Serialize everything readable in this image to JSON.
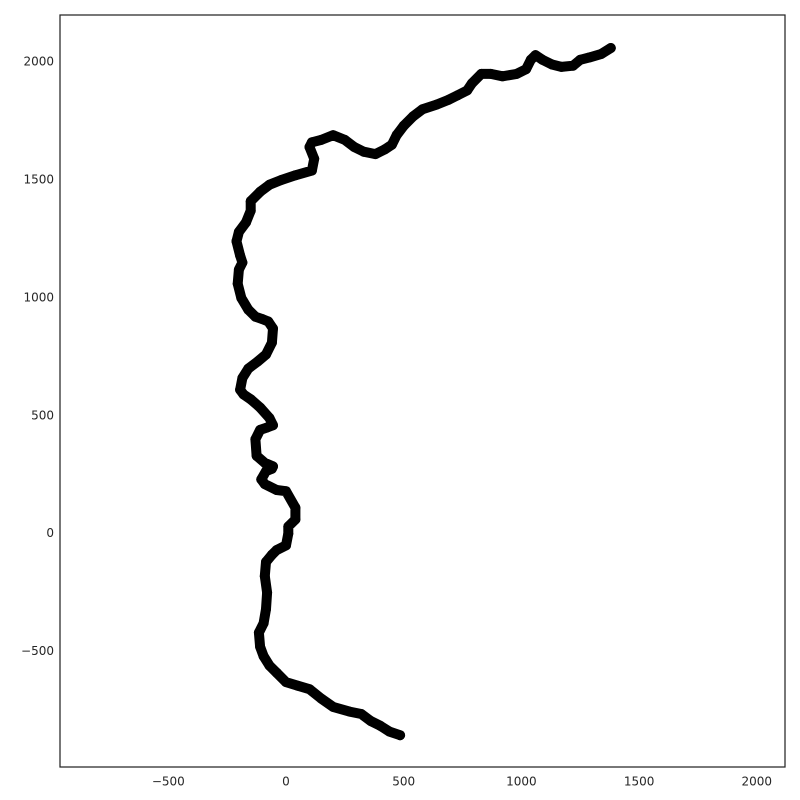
{
  "chart_data": {
    "type": "scatter",
    "title": "",
    "xlabel": "",
    "ylabel": "",
    "xlim": [
      -960,
      2120
    ],
    "ylim": [
      -990,
      2200
    ],
    "grid": false,
    "xticks": [
      -500,
      0,
      500,
      1000,
      1500,
      2000
    ],
    "xtick_labels": [
      "−500",
      "0",
      "500",
      "1000",
      "1500",
      "2000"
    ],
    "yticks": [
      -500,
      0,
      500,
      1000,
      1500,
      2000
    ],
    "ytick_labels": [
      "−500",
      "0",
      "500",
      "1000",
      "1500",
      "2000"
    ],
    "marker_color": "#000000",
    "series": [
      {
        "x": [
          485,
          440,
          400,
          360,
          320,
          270,
          200,
          150,
          100,
          50,
          0,
          -40,
          -70,
          -95,
          -110,
          -115,
          -95,
          -85,
          -80,
          -90,
          -85,
          -60,
          -40,
          0,
          10,
          10,
          40,
          40,
          0,
          -40,
          -90,
          -105,
          -85,
          -60,
          -55,
          -90,
          -125,
          -130,
          -110,
          -80,
          -55,
          -70,
          -110,
          -150,
          -180,
          -195,
          -185,
          -160,
          -120,
          -85,
          -60,
          -55,
          -75,
          -100,
          -130,
          -160,
          -190,
          -205,
          -200,
          -185,
          -195,
          -210,
          -200,
          -170,
          -150,
          -150,
          -110,
          -70,
          -20,
          40,
          110,
          120,
          100,
          110,
          150,
          200,
          250,
          290,
          330,
          380,
          420,
          450,
          470,
          500,
          540,
          580,
          640,
          690,
          730,
          770,
          790,
          830,
          870,
          920,
          980,
          1020,
          1040,
          1060,
          1090,
          1130,
          1170,
          1220,
          1250,
          1290,
          1340,
          1380
        ],
        "y": [
          -855,
          -840,
          -815,
          -795,
          -765,
          -755,
          -735,
          -700,
          -660,
          -645,
          -630,
          -590,
          -560,
          -520,
          -480,
          -420,
          -380,
          -320,
          -250,
          -180,
          -120,
          -90,
          -70,
          -50,
          0,
          30,
          60,
          110,
          180,
          185,
          210,
          230,
          265,
          275,
          285,
          300,
          330,
          400,
          440,
          450,
          460,
          490,
          535,
          570,
          590,
          610,
          660,
          700,
          730,
          760,
          810,
          870,
          900,
          910,
          920,
          950,
          1000,
          1060,
          1120,
          1150,
          1180,
          1240,
          1280,
          1320,
          1370,
          1410,
          1450,
          1480,
          1500,
          1520,
          1540,
          1590,
          1640,
          1660,
          1670,
          1690,
          1670,
          1640,
          1620,
          1610,
          1630,
          1650,
          1690,
          1730,
          1770,
          1800,
          1820,
          1840,
          1860,
          1880,
          1910,
          1950,
          1950,
          1940,
          1950,
          1970,
          2010,
          2030,
          2010,
          1990,
          1980,
          1985,
          2010,
          2020,
          2035,
          2060
        ]
      }
    ]
  }
}
